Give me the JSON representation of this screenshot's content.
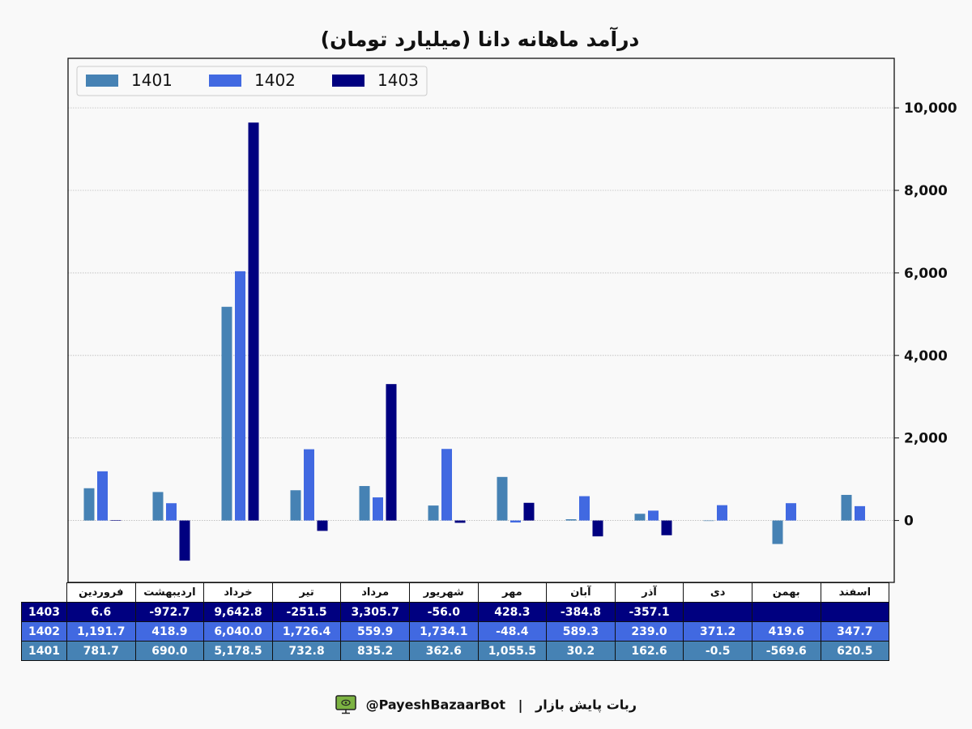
{
  "title": "درآمد ماهانه دانا (میلیارد تومان)",
  "chart_data": {
    "type": "bar",
    "title": "درآمد ماهانه دانا (میلیارد تومان)",
    "categories": [
      "فروردین",
      "اردیبهشت",
      "خرداد",
      "تیر",
      "مرداد",
      "شهریور",
      "مهر",
      "آبان",
      "آذر",
      "دی",
      "بهمن",
      "اسفند"
    ],
    "series": [
      {
        "name": "1401",
        "color": "#4682b4",
        "values": [
          781.7,
          690.0,
          5178.5,
          732.8,
          835.2,
          362.6,
          1055.5,
          30.2,
          162.6,
          -0.5,
          -569.6,
          620.5
        ]
      },
      {
        "name": "1402",
        "color": "#4169e1",
        "values": [
          1191.7,
          418.9,
          6040.0,
          1726.4,
          559.9,
          1734.1,
          -48.4,
          589.3,
          239.0,
          371.2,
          419.6,
          347.7
        ]
      },
      {
        "name": "1403",
        "color": "#000080",
        "values": [
          6.6,
          -972.7,
          9642.8,
          -251.5,
          3305.7,
          -56.0,
          428.3,
          -384.8,
          -357.1,
          null,
          null,
          null
        ]
      }
    ],
    "ylim": [
      -1500,
      11200
    ],
    "yticks": [
      0,
      2000,
      4000,
      6000,
      8000,
      10000
    ],
    "ytick_labels": [
      "0",
      "2,000",
      "4,000",
      "6,000",
      "8,000",
      "10,000"
    ],
    "y_axis_side": "right",
    "grid": true,
    "legend": "top-left",
    "xlabel": "",
    "ylabel": ""
  },
  "table": {
    "headers": [
      "فروردین",
      "اردیبهشت",
      "خرداد",
      "تیر",
      "مرداد",
      "شهریور",
      "مهر",
      "آبان",
      "آذر",
      "دی",
      "بهمن",
      "اسفند"
    ],
    "rows": [
      {
        "label": "1403",
        "cells": [
          "6.6",
          "-972.7",
          "9,642.8",
          "-251.5",
          "3,305.7",
          "-56.0",
          "428.3",
          "-384.8",
          "-357.1",
          "",
          "",
          ""
        ]
      },
      {
        "label": "1402",
        "cells": [
          "1,191.7",
          "418.9",
          "6,040.0",
          "1,726.4",
          "559.9",
          "1,734.1",
          "-48.4",
          "589.3",
          "239.0",
          "371.2",
          "419.6",
          "347.7"
        ]
      },
      {
        "label": "1401",
        "cells": [
          "781.7",
          "690.0",
          "5,178.5",
          "732.8",
          "835.2",
          "362.6",
          "1,055.5",
          "30.2",
          "162.6",
          "-0.5",
          "-569.6",
          "620.5"
        ]
      }
    ]
  },
  "footer": {
    "handle": "@PayeshBazaarBot",
    "separator": "|",
    "bot_name": "ربات پایش بازار",
    "icon": "monitor-icon"
  }
}
